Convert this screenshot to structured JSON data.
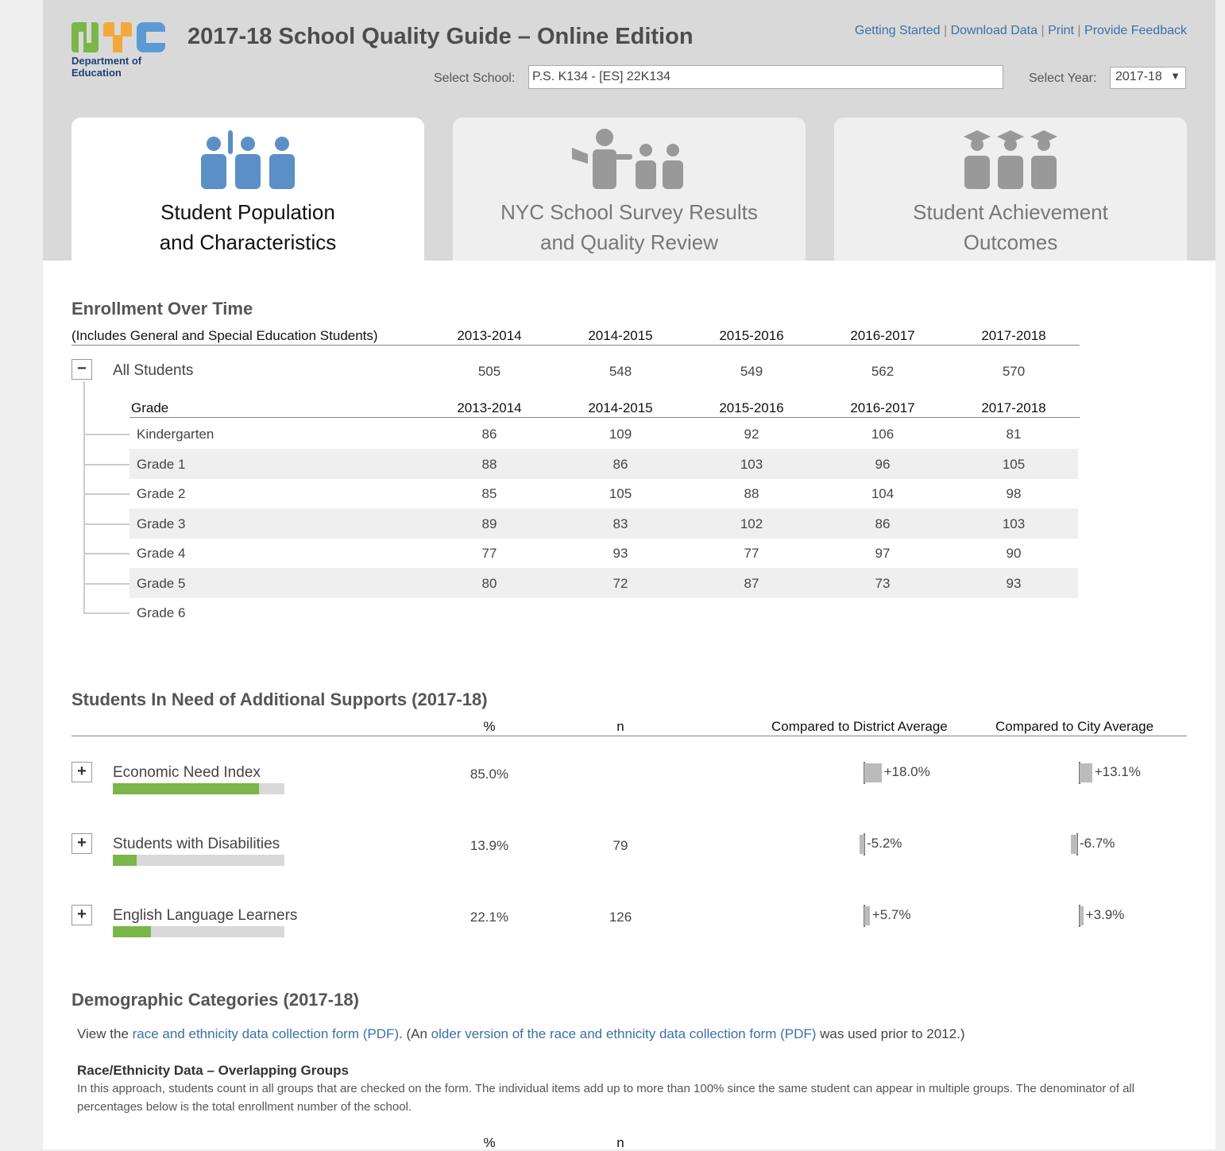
{
  "header": {
    "logo_text": "NYC",
    "logo_dept_line1": "Department of",
    "logo_dept_line2": "Education",
    "title": "2017-18 School Quality Guide – Online Edition",
    "links": [
      "Getting Started",
      "Download Data",
      "Print",
      "Provide Feedback"
    ],
    "link_separator": "|",
    "select_school_label": "Select School:",
    "school_value": "P.S. K134 - [ES] 22K134",
    "select_year_label": "Select Year:",
    "year_value": "2017-18"
  },
  "tabs": [
    {
      "line1": "Student Population",
      "line2": "and Characteristics",
      "icon": "students-raising-hand-icon",
      "active": true
    },
    {
      "line1": "NYC School Survey Results",
      "line2": "and Quality Review",
      "icon": "teacher-with-students-icon",
      "active": false
    },
    {
      "line1": "Student Achievement",
      "line2": "Outcomes",
      "icon": "graduates-icon",
      "active": false
    }
  ],
  "enrollment": {
    "title": "Enrollment Over Time",
    "subtitle": "(Includes General and Special Education Students)",
    "years": [
      "2013-2014",
      "2014-2015",
      "2015-2016",
      "2016-2017",
      "2017-2018"
    ],
    "all_label": "All Students",
    "all_values": [
      "505",
      "548",
      "549",
      "562",
      "570"
    ],
    "toggle": "−",
    "grade_header": "Grade",
    "grades": [
      {
        "label": "Kindergarten",
        "values": [
          "86",
          "109",
          "92",
          "106",
          "81"
        ]
      },
      {
        "label": "Grade 1",
        "values": [
          "88",
          "86",
          "103",
          "96",
          "105"
        ]
      },
      {
        "label": "Grade 2",
        "values": [
          "85",
          "105",
          "88",
          "104",
          "98"
        ]
      },
      {
        "label": "Grade 3",
        "values": [
          "89",
          "83",
          "102",
          "86",
          "103"
        ]
      },
      {
        "label": "Grade 4",
        "values": [
          "77",
          "93",
          "77",
          "97",
          "90"
        ]
      },
      {
        "label": "Grade 5",
        "values": [
          "80",
          "72",
          "87",
          "73",
          "93"
        ]
      },
      {
        "label": "Grade 6",
        "values": [
          "",
          "",
          "",
          "",
          ""
        ]
      }
    ]
  },
  "supports": {
    "title": "Students In Need of Additional Supports (2017-18)",
    "headers": {
      "pct": "%",
      "n": "n",
      "district": "Compared to District Average",
      "city": "Compared to City Average"
    },
    "toggle": "+",
    "rows": [
      {
        "label": "Economic Need Index",
        "pct": "85.0%",
        "pct_value": 85.0,
        "n": "",
        "district": "+18.0%",
        "district_value": 18.0,
        "city": "+13.1%",
        "city_value": 13.1
      },
      {
        "label": "Students with Disabilities",
        "pct": "13.9%",
        "pct_value": 13.9,
        "n": "79",
        "district": "-5.2%",
        "district_value": -5.2,
        "city": "-6.7%",
        "city_value": -6.7
      },
      {
        "label": "English Language Learners",
        "pct": "22.1%",
        "pct_value": 22.1,
        "n": "126",
        "district": "+5.7%",
        "district_value": 5.7,
        "city": "+3.9%",
        "city_value": 3.9
      }
    ],
    "colors": {
      "bar_fill": "#7ab648",
      "bar_bg": "#d9d9d9",
      "compare": "#bbbbbb"
    }
  },
  "demographics": {
    "title": "Demographic Categories (2017-18)",
    "intro_before": "View the ",
    "link1": "race and ethnicity data collection form (PDF)",
    "intro_middle": ". (An ",
    "link2": "older version of the race and ethnicity data collection form (PDF)",
    "intro_after": " was used prior to 2012.)",
    "subheading": "Race/Ethnicity Data – Overlapping Groups",
    "description": "In this approach, students count in all groups that are checked on the form. The individual items add up to more than 100% since the same student can appear in multiple groups. The denominator of all percentages below is the total enrollment number of the school.",
    "col_pct": "%",
    "col_n": "n"
  }
}
